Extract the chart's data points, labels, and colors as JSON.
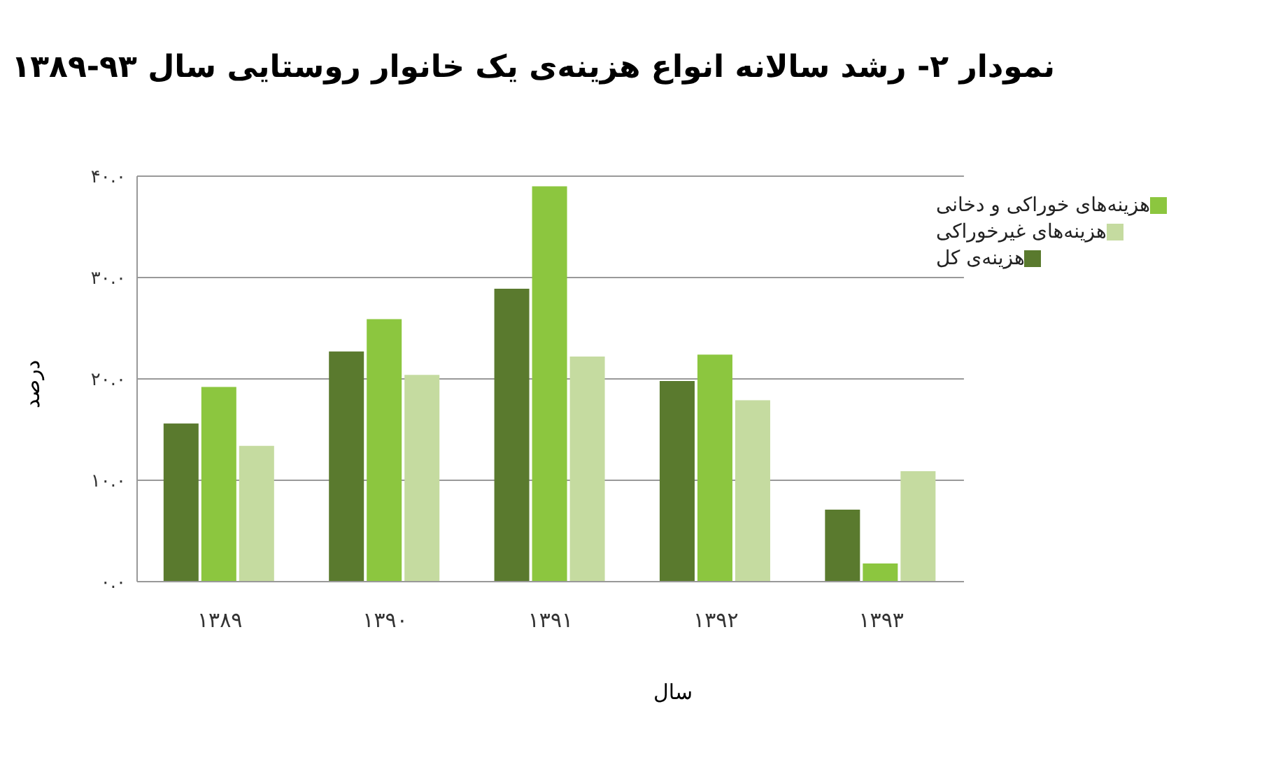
{
  "chart_data": {
    "type": "bar",
    "title": "نمودار ۲- رشد سالانه انواع هزینه‌ی یک خانوار روستایی سال ۹۳-۱۳۸۹",
    "xlabel": "سال",
    "ylabel": "درصد",
    "categories": [
      "۱۳۸۹",
      "۱۳۹۰",
      "۱۳۹۱",
      "۱۳۹۲",
      "۱۳۹۳"
    ],
    "series": [
      {
        "name": "هزینه‌ی کل",
        "color": "#5a7a2e",
        "values": [
          15.6,
          22.7,
          28.9,
          19.8,
          7.1
        ]
      },
      {
        "name": "هزینه‌های خوراکی و دخانی",
        "color": "#8cc63f",
        "values": [
          19.2,
          25.9,
          39.0,
          22.4,
          1.8
        ]
      },
      {
        "name": "هزینه‌های غیرخوراکی",
        "color": "#c5dba0",
        "values": [
          13.4,
          20.4,
          22.2,
          17.9,
          10.9
        ]
      }
    ],
    "ylim": [
      0,
      40
    ],
    "yticks": [
      {
        "value": 0,
        "label": "۰.۰"
      },
      {
        "value": 10,
        "label": "۱۰.۰"
      },
      {
        "value": 20,
        "label": "۲۰.۰"
      },
      {
        "value": 30,
        "label": "۳۰.۰"
      },
      {
        "value": 40,
        "label": "۴۰.۰"
      }
    ],
    "grid": "y",
    "legend": "top right"
  }
}
